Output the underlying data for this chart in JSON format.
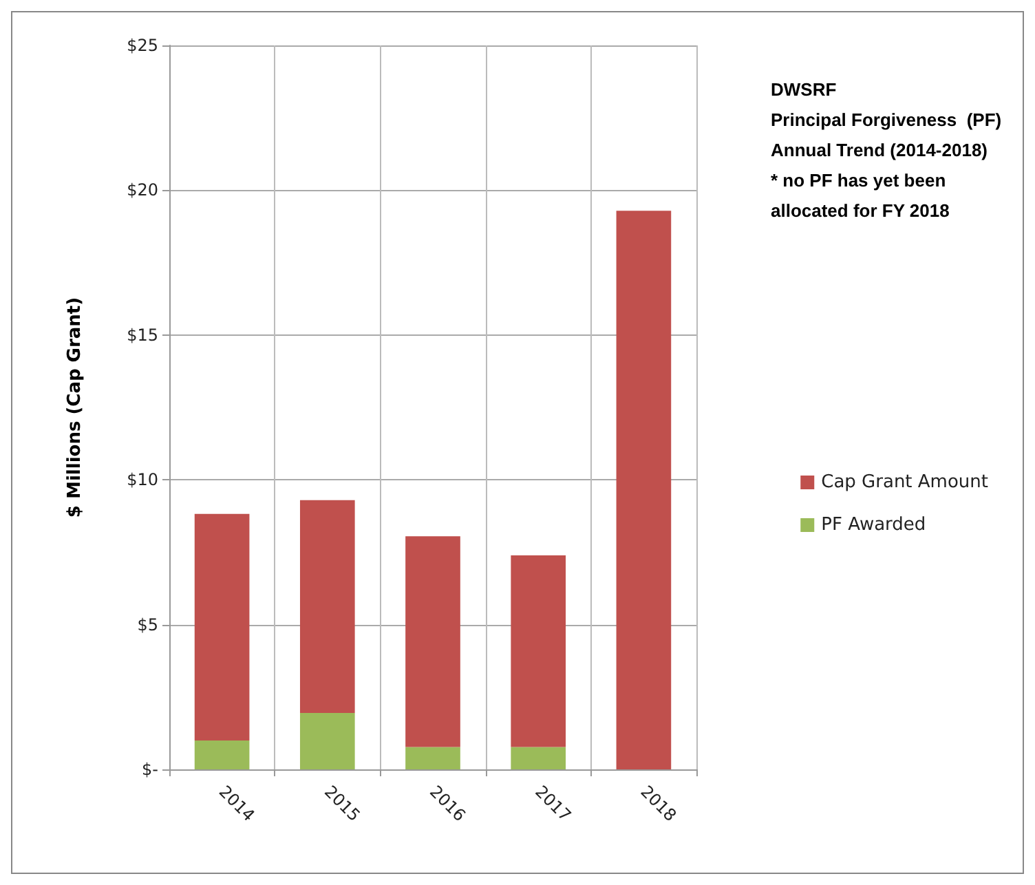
{
  "chart_data": {
    "type": "bar",
    "title": "DWSRF\nPrincipal Forgiveness  (PF)\nAnnual Trend (2014-2018)\n* no PF has yet been\nallocated for FY 2018",
    "ylabel": "$ Millions (Cap Grant)",
    "categories": [
      "2014",
      "2015",
      "2016",
      "2017",
      "2018"
    ],
    "stacked": true,
    "series": [
      {
        "name": "PF Awarded",
        "color": "#9bbb59",
        "values": [
          1.0,
          1.95,
          0.77,
          0.77,
          0
        ]
      },
      {
        "name": "Cap Grant Amount",
        "color": "#c0504d",
        "values": [
          7.82,
          7.35,
          7.28,
          6.62,
          19.29
        ]
      }
    ],
    "ylim": [
      0,
      25
    ],
    "yticks": [
      {
        "value": 0,
        "label": "$-"
      },
      {
        "value": 5,
        "label": "$5"
      },
      {
        "value": 10,
        "label": "$10"
      },
      {
        "value": 15,
        "label": "$15"
      },
      {
        "value": 20,
        "label": "$20"
      },
      {
        "value": 25,
        "label": "$25"
      }
    ],
    "grid": true,
    "legend": "right"
  }
}
